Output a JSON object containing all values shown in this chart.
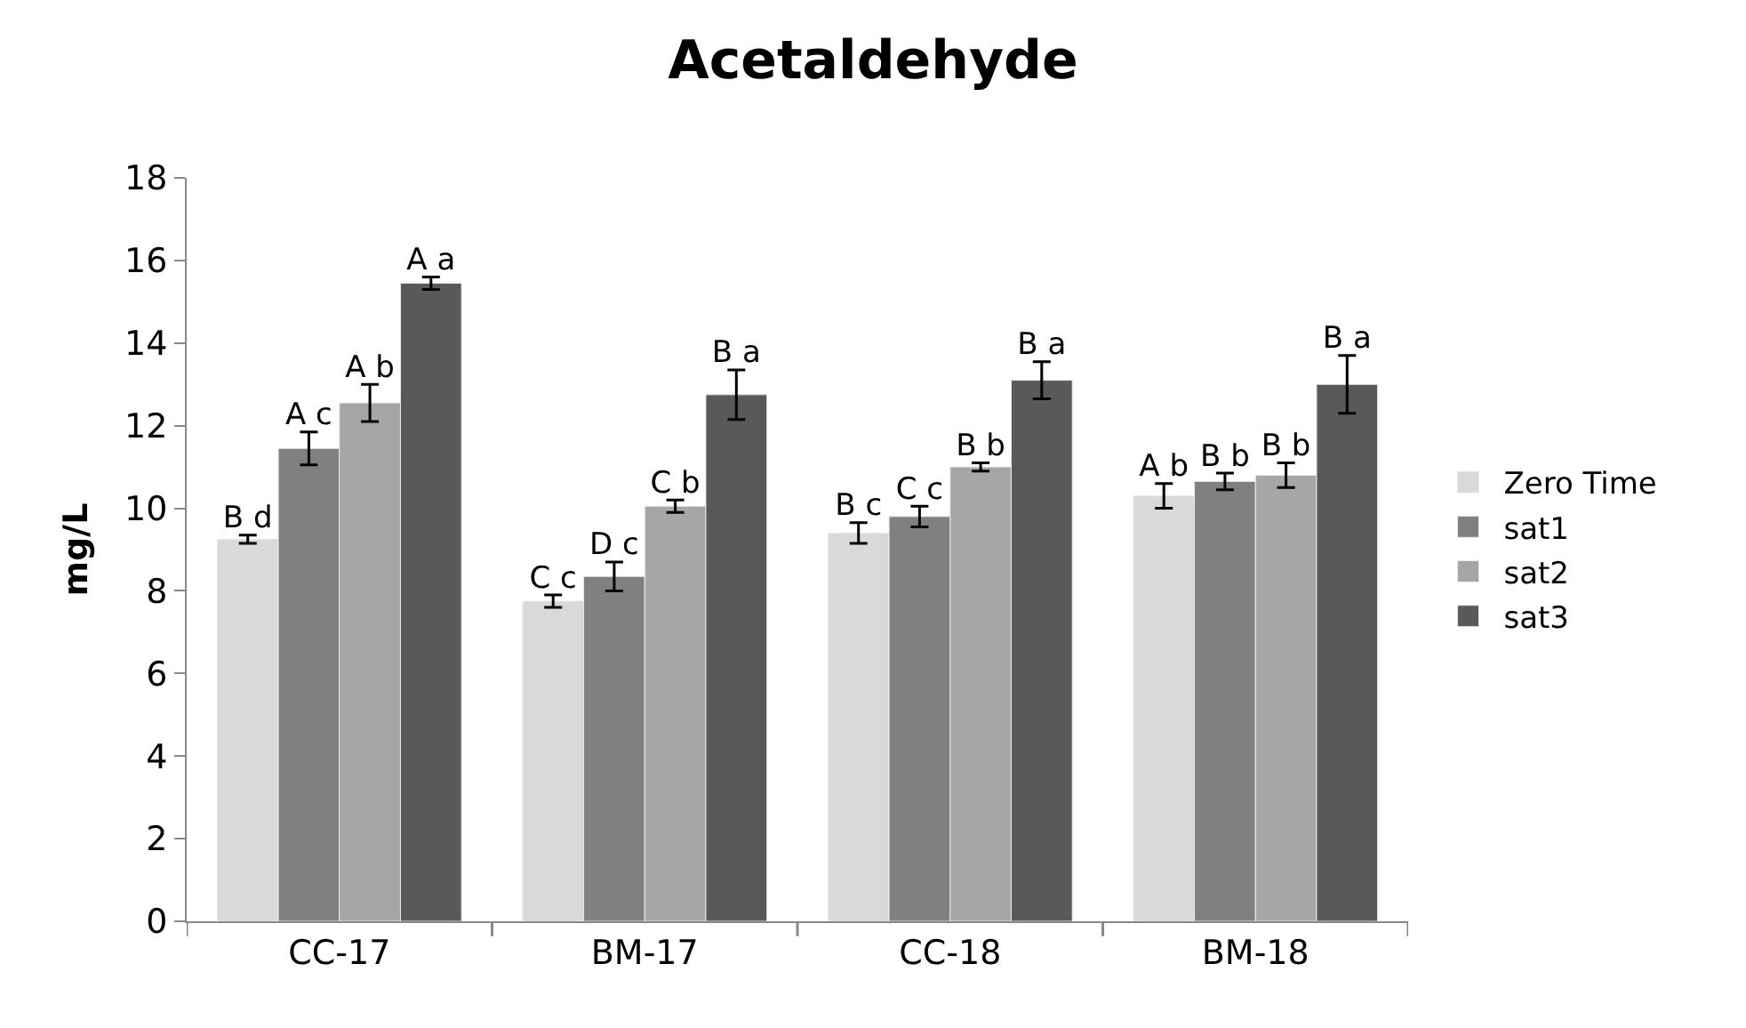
{
  "chart_data": {
    "type": "bar",
    "title": "Acetaldehyde",
    "ylabel": "mg/L",
    "categories": [
      "CC-17",
      "BM-17",
      "CC-18",
      "BM-18"
    ],
    "series": [
      {
        "name": "Zero Time",
        "color": "#d9d9d9",
        "values": [
          9.25,
          7.75,
          9.4,
          10.3
        ],
        "errors": [
          0.1,
          0.15,
          0.25,
          0.3
        ],
        "value_labels": [
          "B d",
          "C c",
          "B c",
          "A b"
        ]
      },
      {
        "name": "sat1",
        "color": "#808080",
        "values": [
          11.45,
          8.35,
          9.8,
          10.65
        ],
        "errors": [
          0.4,
          0.35,
          0.25,
          0.2
        ],
        "value_labels": [
          "A c",
          "D c",
          "C c",
          "B b"
        ]
      },
      {
        "name": "sat2",
        "color": "#a6a6a6",
        "values": [
          12.55,
          10.05,
          11.0,
          10.8
        ],
        "errors": [
          0.45,
          0.15,
          0.1,
          0.3
        ],
        "value_labels": [
          "A b",
          "C b",
          "B b",
          "B b"
        ]
      },
      {
        "name": "sat3",
        "color": "#595959",
        "values": [
          15.45,
          12.75,
          13.1,
          13.0
        ],
        "errors": [
          0.15,
          0.6,
          0.45,
          0.7
        ],
        "value_labels": [
          "A a",
          "B a",
          "B a",
          "B a"
        ]
      }
    ],
    "ylim": [
      0,
      18
    ],
    "yticks": [
      0,
      2,
      4,
      6,
      8,
      10,
      12,
      14,
      16,
      18
    ],
    "legend": "right"
  }
}
